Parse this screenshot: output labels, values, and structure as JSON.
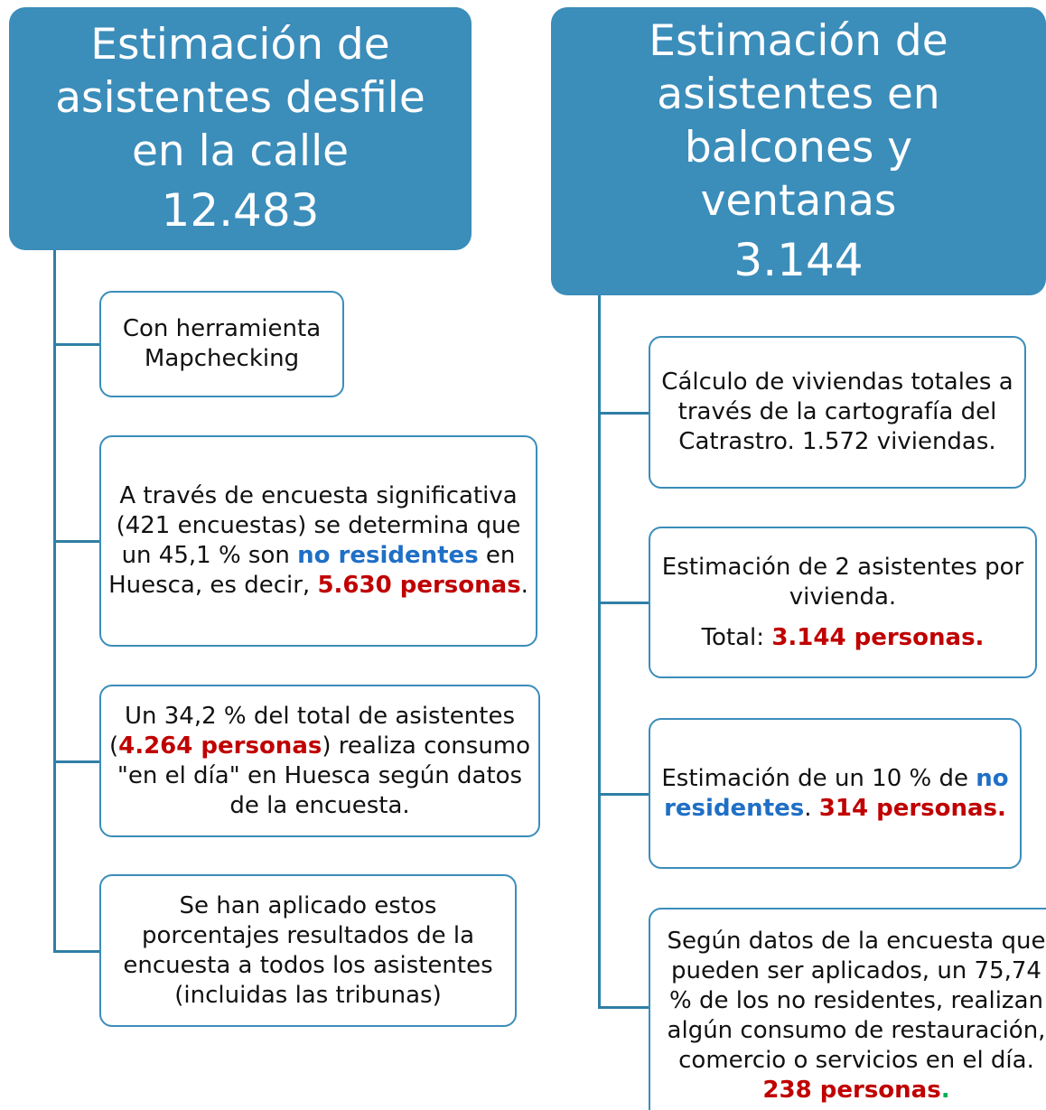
{
  "columns": [
    {
      "title_lines": [
        "Estimación de",
        "asistentes desfile",
        "en la calle"
      ],
      "value": "12.483",
      "nodes": [
        {
          "paragraphs": [
            [
              {
                "text": "Con herramienta Mapchecking"
              }
            ]
          ]
        },
        {
          "paragraphs": [
            [
              {
                "text": "A través de encuesta significativa (421 encuestas) se determina que un 45,1 % son "
              },
              {
                "text": "no residentes",
                "color": "#1f6fc6"
              },
              {
                "text": " en Huesca, es decir, "
              },
              {
                "text": "5.630 personas",
                "color": "#c00000"
              },
              {
                "text": "."
              }
            ]
          ]
        },
        {
          "paragraphs": [
            [
              {
                "text": "Un 34,2 % del total de asistentes ("
              },
              {
                "text": "4.264 personas",
                "color": "#c00000"
              },
              {
                "text": ") realiza consumo \"en el día\" en Huesca según datos de la encuesta."
              }
            ]
          ]
        },
        {
          "paragraphs": [
            [
              {
                "text": "Se han aplicado estos porcentajes resultados de la encuesta a todos los asistentes (incluidas las tribunas)"
              }
            ]
          ]
        }
      ]
    },
    {
      "title_lines": [
        "Estimación de",
        "asistentes en",
        "balcones y",
        "ventanas"
      ],
      "value": "3.144",
      "nodes": [
        {
          "paragraphs": [
            [
              {
                "text": "Cálculo de viviendas totales a través de la cartografía del Catrastro. 1.572 viviendas."
              }
            ]
          ]
        },
        {
          "paragraphs": [
            [
              {
                "text": "Estimación de 2 asistentes por vivienda."
              }
            ],
            [
              {
                "text": "Total: "
              },
              {
                "text": "3.144 personas.",
                "color": "#c00000"
              }
            ]
          ]
        },
        {
          "paragraphs": [
            [
              {
                "text": "Estimación de un 10 % de "
              },
              {
                "text": "no residentes",
                "color": "#1f6fc6"
              },
              {
                "text": ". "
              },
              {
                "text": "314 personas.",
                "color": "#c00000"
              }
            ]
          ]
        },
        {
          "paragraphs": [
            [
              {
                "text": "Según datos de la encuesta que pueden ser aplicados, un 75,74 % de los no residentes, realizan algún consumo de restauración, comercio o servicios en el día. "
              },
              {
                "text": "238 personas",
                "color": "#c00000"
              },
              {
                "text": ".",
                "color": "#00b050"
              }
            ]
          ]
        }
      ]
    }
  ]
}
